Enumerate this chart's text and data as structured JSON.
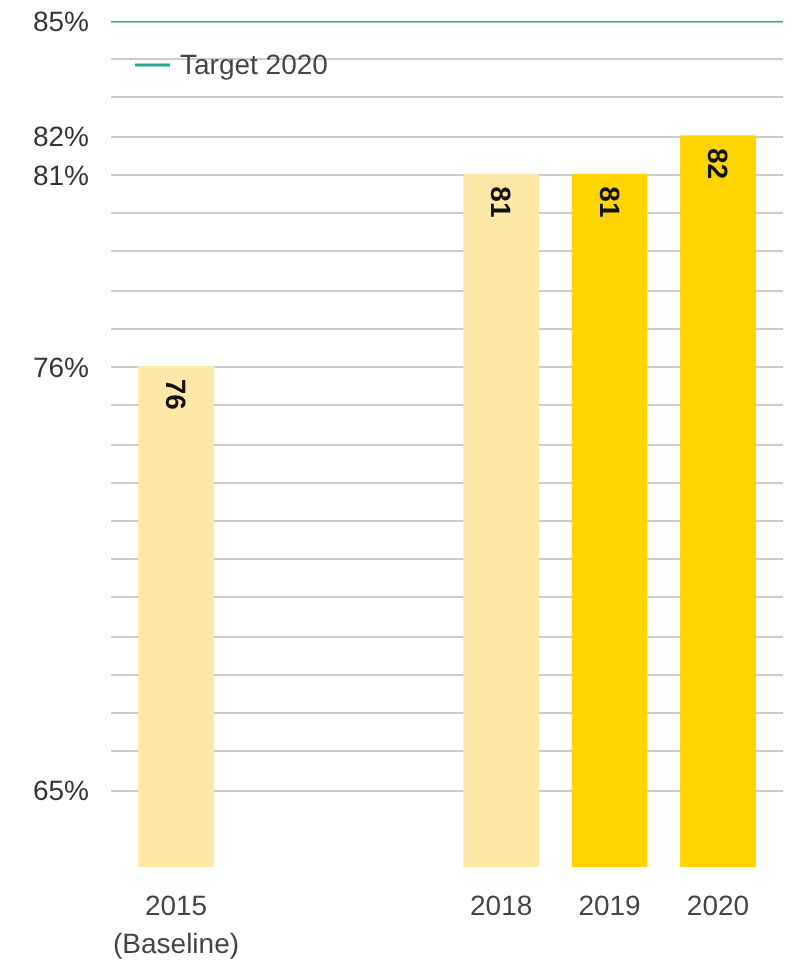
{
  "chart_data": {
    "type": "bar",
    "categories": [
      "2015\n(Baseline)",
      null,
      null,
      "2018",
      "2019",
      "2020"
    ],
    "values": [
      76,
      null,
      null,
      81,
      81,
      82
    ],
    "colors": [
      "#fde8a8",
      null,
      null,
      "#fde8a8",
      "#ffd400",
      "#ffd400"
    ],
    "ylim": [
      63,
      85
    ],
    "yticks": [
      {
        "value": 65,
        "label": "65%"
      },
      {
        "value": 66,
        "label": null
      },
      {
        "value": 67,
        "label": null
      },
      {
        "value": 68,
        "label": null
      },
      {
        "value": 69,
        "label": null
      },
      {
        "value": 70,
        "label": null
      },
      {
        "value": 71,
        "label": null
      },
      {
        "value": 72,
        "label": null
      },
      {
        "value": 73,
        "label": null
      },
      {
        "value": 74,
        "label": null
      },
      {
        "value": 75,
        "label": null
      },
      {
        "value": 76,
        "label": "76%"
      },
      {
        "value": 77,
        "label": null
      },
      {
        "value": 78,
        "label": null
      },
      {
        "value": 79,
        "label": null
      },
      {
        "value": 80,
        "label": null
      },
      {
        "value": 81,
        "label": "81%"
      },
      {
        "value": 82,
        "label": "82%"
      },
      {
        "value": 83,
        "label": null
      },
      {
        "value": 84,
        "label": null
      },
      {
        "value": 85,
        "label": "85%"
      }
    ],
    "ref_lines": [
      {
        "axis": "y",
        "value": 85,
        "label": "Target 2020",
        "color": "#2aa58f"
      }
    ],
    "grid": "y",
    "legend": "top left",
    "data_labels": true
  }
}
